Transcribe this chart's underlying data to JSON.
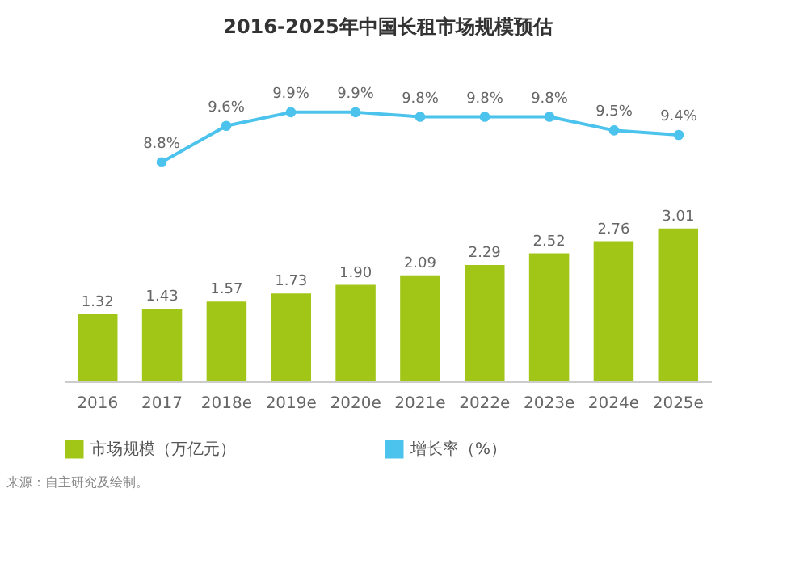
{
  "chart_data": [
    {
      "type": "line",
      "title": "2016-2025年中国长租市场规模预估",
      "categories": [
        null,
        null,
        null,
        null,
        null,
        null,
        null,
        null,
        null,
        null
      ],
      "series": [
        {
          "name": "增长率（%）",
          "color": "#4cc3ec",
          "values": [
            null,
            8.8,
            9.6,
            9.9,
            9.9,
            9.8,
            9.8,
            9.8,
            9.5,
            9.4
          ],
          "value_labels": [
            null,
            "8.8%",
            "9.6%",
            "9.9%",
            "9.9%",
            "9.8%",
            "9.8%",
            "9.8%",
            "9.5%",
            "9.4%"
          ]
        }
      ],
      "marker": "circle",
      "tick_labels": false,
      "legend": "bottom"
    },
    {
      "type": "bar",
      "categories": [
        "2016",
        "2017",
        "2018e",
        "2019e",
        "2020e",
        "2021e",
        "2022e",
        "2023e",
        "2024e",
        "2025e"
      ],
      "series": [
        {
          "name": "市场规模（万亿元）",
          "color": "#a2c617",
          "values": [
            1.32,
            1.43,
            1.57,
            1.73,
            1.9,
            2.09,
            2.29,
            2.52,
            2.76,
            3.01
          ],
          "value_labels": [
            "1.32",
            "1.43",
            "1.57",
            "1.73",
            "1.90",
            "2.09",
            "2.29",
            "2.52",
            "2.76",
            "3.01"
          ]
        }
      ],
      "tick_labels": "x",
      "legend": "bottom",
      "annotations": [
        "来源：自主研究及绘制。"
      ]
    }
  ]
}
